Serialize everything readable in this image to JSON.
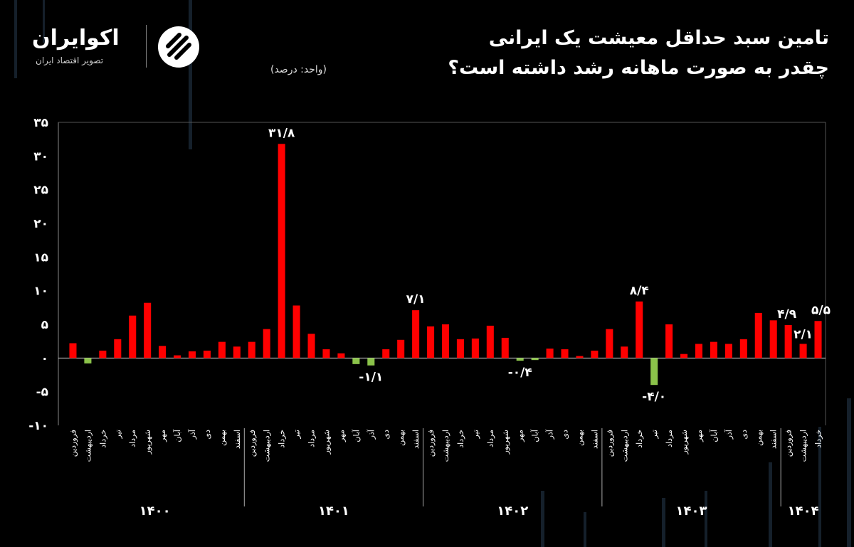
{
  "header": {
    "title_line1": "تامین سبد حداقل معیشت یک ایرانی",
    "title_line2": "چقدر به صورت ماهانه رشد داشته است؟",
    "unit": "(واحد: درصد)"
  },
  "brand": {
    "name": "اکوایران",
    "tagline": "تصویر اقتصاد ایران",
    "icon": "ecoiran-logo-icon"
  },
  "colors": {
    "positive": "#ff0000",
    "negative": "#8bc34a",
    "background": "#000000",
    "grid": "#444444"
  },
  "chart_data": {
    "type": "bar",
    "ylim": [
      -10,
      35
    ],
    "yticks": [
      -10,
      -5,
      0,
      5,
      10,
      15,
      20,
      25,
      30,
      35
    ],
    "ytick_labels": [
      "-۱۰",
      "-۵",
      "۰",
      "۵",
      "۱۰",
      "۱۵",
      "۲۰",
      "۲۵",
      "۳۰",
      "۳۵"
    ],
    "grid": "off",
    "categories": [
      "فروردین",
      "اردیبهشت",
      "خرداد",
      "تیر",
      "مرداد",
      "شهریور",
      "مهر",
      "آبان",
      "آذر",
      "دی",
      "بهمن",
      "اسفند",
      "فروردین",
      "اردیبهشت",
      "خرداد",
      "تیر",
      "مرداد",
      "شهریور",
      "مهر",
      "آبان",
      "آذر",
      "دی",
      "بهمن",
      "اسفند",
      "فروردین",
      "اردیبهشت",
      "خرداد",
      "تیر",
      "مرداد",
      "شهریور",
      "مهر",
      "آبان",
      "آذر",
      "دی",
      "بهمن",
      "اسفند",
      "فروردین",
      "اردیبهشت",
      "خرداد",
      "تیر",
      "مرداد",
      "شهریور",
      "مهر",
      "آبان",
      "آذر",
      "دی",
      "بهمن",
      "اسفند",
      "فروردین",
      "اردیبهشت",
      "خرداد"
    ],
    "values": [
      2.2,
      -0.8,
      1.1,
      2.8,
      6.3,
      8.2,
      1.8,
      0.4,
      1.0,
      1.1,
      2.4,
      1.7,
      2.4,
      4.3,
      31.8,
      7.8,
      3.6,
      1.3,
      0.7,
      -0.9,
      -1.1,
      1.3,
      2.7,
      7.1,
      4.7,
      5.0,
      2.8,
      2.9,
      4.8,
      3.0,
      -0.4,
      -0.3,
      1.4,
      1.3,
      0.3,
      1.1,
      4.3,
      1.7,
      8.4,
      -4.0,
      5.0,
      0.6,
      2.1,
      2.4,
      2.1,
      2.8,
      6.7,
      5.6,
      4.9,
      2.1,
      5.5
    ],
    "groups": [
      {
        "label": "۱۴۰۰",
        "count": 12
      },
      {
        "label": "۱۴۰۱",
        "count": 12
      },
      {
        "label": "۱۴۰۲",
        "count": 12
      },
      {
        "label": "۱۴۰۳",
        "count": 12
      },
      {
        "label": "۱۴۰۴",
        "count": 3
      }
    ],
    "data_labels": [
      {
        "index": 14,
        "text": "۳۱/۸"
      },
      {
        "index": 20,
        "text": "-۱/۱"
      },
      {
        "index": 23,
        "text": "۷/۱"
      },
      {
        "index": 30,
        "text": "-۰/۴"
      },
      {
        "index": 38,
        "text": "۸/۴"
      },
      {
        "index": 39,
        "text": "-۴/۰"
      },
      {
        "index": 48,
        "text": "۴/۹"
      },
      {
        "index": 49,
        "text": "۲/۱"
      },
      {
        "index": 50,
        "text": "۵/۵"
      }
    ]
  }
}
